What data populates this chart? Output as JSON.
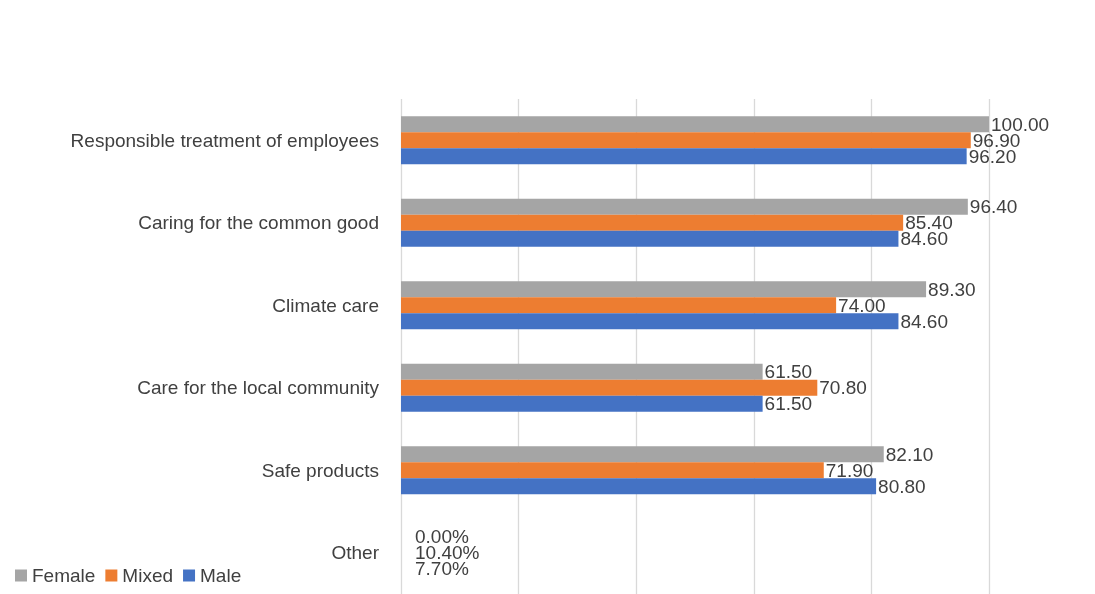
{
  "chart_data": {
    "type": "bar",
    "orientation": "horizontal",
    "categories": [
      "Responsible treatment of employees",
      "Caring for the common good",
      "Climate care",
      "Care for the local community",
      "Safe products",
      "Other"
    ],
    "series": [
      {
        "name": "Female",
        "color": "#a5a5a5",
        "values": [
          100,
          96.4,
          89.3,
          61.5,
          82.1,
          null
        ],
        "value_labels": [
          "100.00",
          "96.40",
          "89.30",
          "61.50",
          "82.10",
          "0.00%"
        ]
      },
      {
        "name": "Mixed",
        "color": "#ed7d31",
        "values": [
          96.9,
          85.4,
          74,
          70.8,
          71.9,
          null
        ],
        "value_labels": [
          "96.90",
          "85.40",
          "74.00",
          "70.80",
          "71.90",
          "10.40%"
        ]
      },
      {
        "name": "Male",
        "color": "#4472c4",
        "values": [
          96.2,
          84.6,
          84.6,
          61.5,
          80.8,
          null
        ],
        "value_labels": [
          "96.20",
          "84.60",
          "84.60",
          "61.50",
          "80.80",
          "7.70%"
        ]
      }
    ],
    "xlim": [
      0,
      100
    ],
    "xticks": [
      {
        "value": 0,
        "label": null
      },
      {
        "value": 20,
        "label": null
      },
      {
        "value": 40,
        "label": null
      },
      {
        "value": 60,
        "label": null
      },
      {
        "value": 80,
        "label": null
      },
      {
        "value": 100,
        "label": null
      }
    ],
    "tick_labels": "y",
    "grid": "x",
    "legend": "bottom left"
  }
}
